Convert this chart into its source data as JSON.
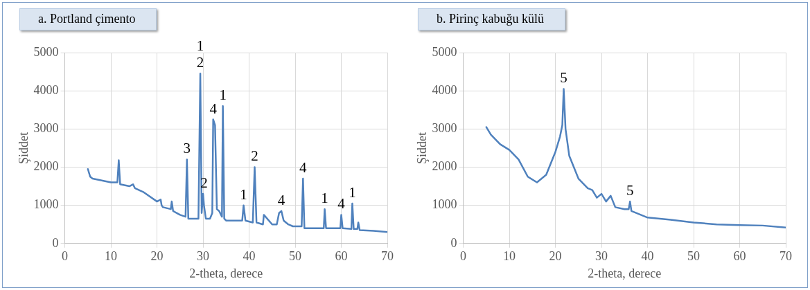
{
  "chart_data": [
    {
      "type": "line",
      "title": "a. Portland çimento",
      "xlabel": "2-theta, derece",
      "ylabel": "Şiddet",
      "xlim": [
        0,
        70
      ],
      "xticks": [
        0,
        10,
        20,
        30,
        40,
        50,
        60,
        70
      ],
      "ylim": [
        0,
        5000
      ],
      "yticks": [
        0,
        1000,
        2000,
        3000,
        4000,
        5000
      ],
      "grid": true,
      "legend": false,
      "marker": "none",
      "line_style": "solid",
      "series": [
        {
          "color": "#4f81bd",
          "x": [
            5,
            5.5,
            6,
            8,
            10,
            11.4,
            11.7,
            12,
            14,
            14.8,
            15.2,
            17,
            20,
            20.8,
            21,
            21.3,
            23,
            23.2,
            23.5,
            25,
            26.2,
            26.5,
            26.8,
            28,
            29,
            29.4,
            29.7,
            30,
            30.2,
            30.6,
            31.5,
            32,
            32.2,
            32.6,
            33,
            33.5,
            34.1,
            34.3,
            34.6,
            35,
            37,
            38.5,
            38.8,
            39.2,
            40.8,
            41.2,
            41.6,
            43,
            43.2,
            45,
            46,
            46.5,
            47,
            47.5,
            48.5,
            49.5,
            51.4,
            51.7,
            52,
            54,
            56.2,
            56.4,
            56.7,
            59.8,
            60,
            60.3,
            62.2,
            62.4,
            62.7,
            63.5,
            63.7,
            64,
            67,
            70
          ],
          "values": [
            1950,
            1750,
            1700,
            1650,
            1600,
            1600,
            2180,
            1550,
            1500,
            1550,
            1450,
            1350,
            1100,
            1150,
            1000,
            950,
            900,
            1100,
            850,
            750,
            700,
            2200,
            650,
            650,
            650,
            4450,
            800,
            1300,
            1000,
            650,
            650,
            800,
            3250,
            3100,
            900,
            850,
            700,
            3600,
            650,
            600,
            600,
            600,
            1000,
            600,
            550,
            2000,
            550,
            500,
            750,
            500,
            500,
            800,
            850,
            600,
            500,
            450,
            450,
            1700,
            400,
            400,
            400,
            900,
            400,
            400,
            750,
            400,
            380,
            1050,
            380,
            380,
            550,
            350,
            330,
            300
          ]
        }
      ],
      "annotations": [
        {
          "text": "3",
          "x": 26.5,
          "y": 2200
        },
        {
          "text": "2",
          "x": 29.4,
          "y": 4450
        },
        {
          "text": "1",
          "x": 29.4,
          "y": 4450
        },
        {
          "text": "2",
          "x": 30.2,
          "y": 1300
        },
        {
          "text": "4",
          "x": 32.2,
          "y": 3250
        },
        {
          "text": "1",
          "x": 34.3,
          "y": 3600
        },
        {
          "text": "1",
          "x": 38.8,
          "y": 1000
        },
        {
          "text": "2",
          "x": 41.2,
          "y": 2000
        },
        {
          "text": "4",
          "x": 47,
          "y": 850
        },
        {
          "text": "4",
          "x": 51.7,
          "y": 1700
        },
        {
          "text": "1",
          "x": 56.4,
          "y": 900
        },
        {
          "text": "4",
          "x": 60,
          "y": 750
        },
        {
          "text": "1",
          "x": 62.4,
          "y": 1050
        }
      ]
    },
    {
      "type": "line",
      "title": "b. Pirinç kabuğu külü",
      "xlabel": "2-theta, derece",
      "ylabel": "Şiddet",
      "xlim": [
        0,
        70
      ],
      "xticks": [
        0,
        10,
        20,
        30,
        40,
        50,
        60,
        70
      ],
      "ylim": [
        0,
        5000
      ],
      "yticks": [
        0,
        1000,
        2000,
        3000,
        4000,
        5000
      ],
      "grid": true,
      "legend": false,
      "marker": "none",
      "line_style": "solid",
      "series": [
        {
          "color": "#4f81bd",
          "x": [
            5,
            6,
            8,
            10,
            12,
            14,
            16,
            18,
            20,
            21,
            21.5,
            21.8,
            22.2,
            23,
            25,
            27,
            28,
            29,
            30,
            31,
            32,
            33,
            35,
            35.9,
            36.2,
            36.5,
            40,
            45,
            50,
            55,
            60,
            65,
            70
          ],
          "values": [
            3050,
            2850,
            2600,
            2450,
            2200,
            1750,
            1600,
            1800,
            2400,
            2800,
            3100,
            4050,
            3000,
            2300,
            1700,
            1450,
            1400,
            1200,
            1300,
            1100,
            1250,
            950,
            900,
            900,
            1100,
            850,
            680,
            620,
            550,
            500,
            480,
            470,
            420
          ]
        }
      ],
      "annotations": [
        {
          "text": "5",
          "x": 21.8,
          "y": 4050
        },
        {
          "text": "5",
          "x": 36.2,
          "y": 1100
        }
      ]
    }
  ]
}
